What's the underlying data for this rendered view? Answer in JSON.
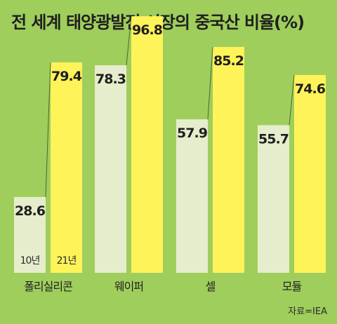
{
  "chart_data": {
    "type": "bar",
    "title": "전 세계 태양광발전 시장의 중국산 비율(%)",
    "categories": [
      "폴리실리콘",
      "웨이퍼",
      "셀",
      "모듈"
    ],
    "series": [
      {
        "name": "10년",
        "values": [
          28.6,
          78.3,
          57.9,
          55.7
        ]
      },
      {
        "name": "21년",
        "values": [
          79.4,
          96.8,
          85.2,
          74.6
        ]
      }
    ],
    "ylim": [
      0,
      100
    ],
    "grid": false,
    "colors": {
      "background": "#9fce5c",
      "series_10": "#e6edcc",
      "series_21": "#fff35a"
    },
    "source": "자료=IEA"
  }
}
